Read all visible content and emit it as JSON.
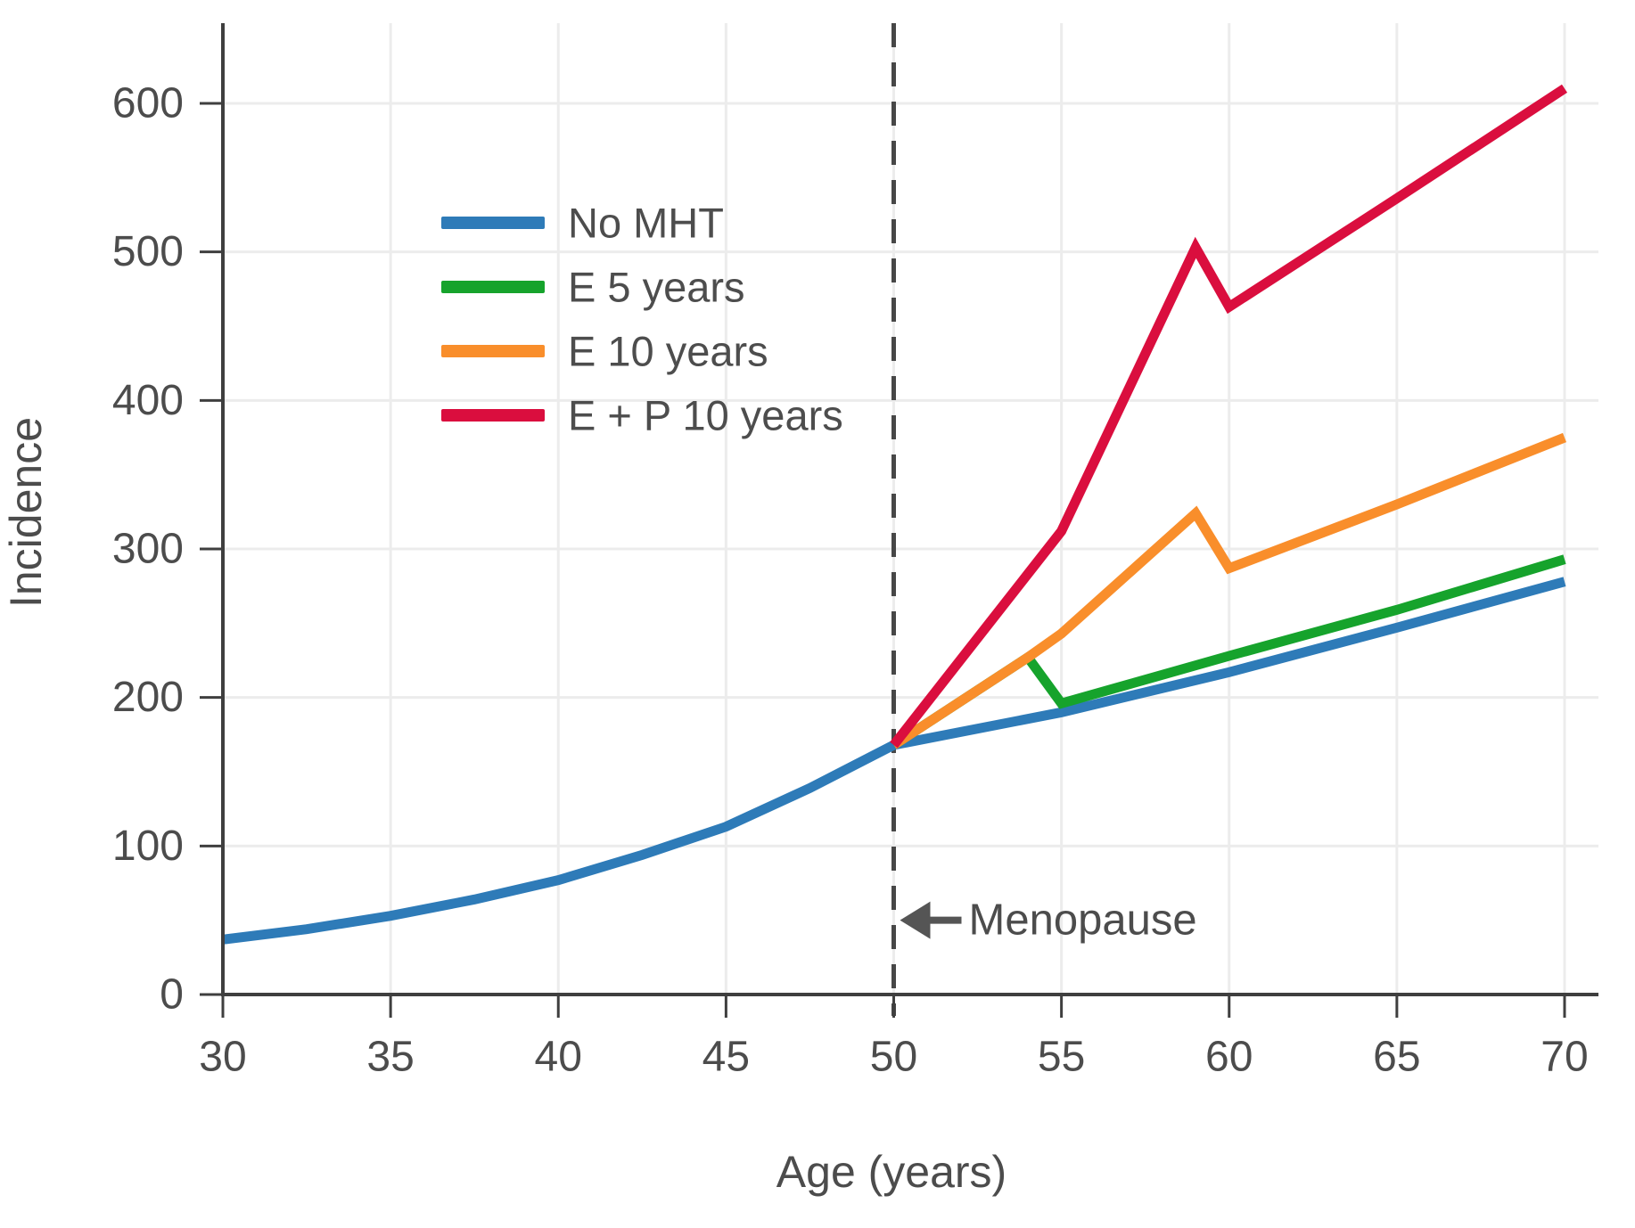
{
  "figure": {
    "background": "#ffffff",
    "axis_color": "#3f3f3f",
    "grid_color": "#ececec",
    "dashed_line_color": "#474747",
    "text_color": "#4c4c4c",
    "arrow_color": "#555555"
  },
  "chart_data": {
    "type": "line",
    "title": "",
    "xlabel": "Age (years)",
    "ylabel": "Incidence",
    "xlim": [
      30,
      70
    ],
    "ylim": [
      0,
      650
    ],
    "x_ticks": [
      30,
      35,
      40,
      45,
      50,
      55,
      60,
      65,
      70
    ],
    "y_ticks": [
      0,
      100,
      200,
      300,
      400,
      500,
      600
    ],
    "grid": true,
    "legend_position": "upper-left-inside",
    "series": [
      {
        "name": "No MHT",
        "color": "#2e7bb8",
        "points": [
          [
            30,
            37
          ],
          [
            32.5,
            44
          ],
          [
            35,
            53
          ],
          [
            37.5,
            64
          ],
          [
            40,
            77
          ],
          [
            42.5,
            94
          ],
          [
            45,
            113
          ],
          [
            47.5,
            139
          ],
          [
            50,
            168
          ],
          [
            55,
            190
          ],
          [
            60,
            217
          ],
          [
            65,
            247
          ],
          [
            70,
            278
          ]
        ]
      },
      {
        "name": "E 5 years",
        "color": "#16a32c",
        "points": [
          [
            50,
            168
          ],
          [
            54,
            227
          ],
          [
            55,
            196
          ],
          [
            60,
            228
          ],
          [
            65,
            259
          ],
          [
            70,
            293
          ]
        ]
      },
      {
        "name": "E 10 years",
        "color": "#f98e2b",
        "points": [
          [
            50,
            168
          ],
          [
            54,
            227
          ],
          [
            55,
            243
          ],
          [
            59,
            324
          ],
          [
            60,
            287
          ],
          [
            65,
            330
          ],
          [
            70,
            375
          ]
        ]
      },
      {
        "name": "E + P 10 years",
        "color": "#da0e3e",
        "points": [
          [
            50,
            168
          ],
          [
            55,
            312
          ],
          [
            59,
            503
          ],
          [
            60,
            463
          ],
          [
            65,
            536
          ],
          [
            70,
            610
          ]
        ]
      }
    ],
    "reference_line": {
      "x": 50,
      "style": "dashed"
    },
    "annotation": {
      "text": "Menopause",
      "x": 50,
      "y": 50,
      "arrow": "left"
    }
  },
  "legend": {
    "items": [
      {
        "label": "No MHT",
        "color": "#2e7bb8"
      },
      {
        "label": "E 5 years",
        "color": "#16a32c"
      },
      {
        "label": "E 10 years",
        "color": "#f98e2b"
      },
      {
        "label": "E + P 10 years",
        "color": "#da0e3e"
      }
    ]
  }
}
